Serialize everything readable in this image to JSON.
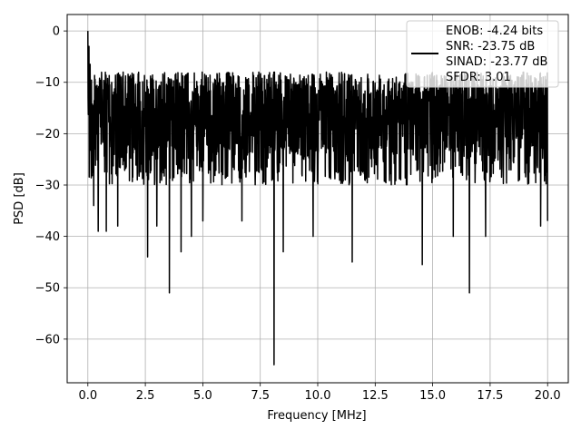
{
  "chart_data": {
    "type": "line",
    "title": "",
    "xlabel": "Frequency [MHz]",
    "ylabel": "PSD [dB]",
    "xlim": [
      -0.9,
      20.9
    ],
    "ylim": [
      -68.5,
      3.2
    ],
    "xticks": [
      0.0,
      2.5,
      5.0,
      7.5,
      10.0,
      12.5,
      15.0,
      17.5,
      20.0
    ],
    "xtick_labels": [
      "0.0",
      "2.5",
      "5.0",
      "7.5",
      "10.0",
      "12.5",
      "15.0",
      "17.5",
      "20.0"
    ],
    "yticks": [
      0,
      -10,
      -20,
      -30,
      -40,
      -50,
      -60
    ],
    "ytick_labels": [
      "0",
      "−10",
      "−20",
      "−30",
      "−40",
      "−50",
      "−60"
    ],
    "grid": true,
    "legend_position": "upper-right",
    "legend": [
      "ENOB: -4.24 bits",
      "SNR: -23.75 dB",
      "SINAD: -23.77 dB",
      "SFDR: 3.01"
    ],
    "series": [
      {
        "color": "#000000",
        "x_range": [
          0.0,
          20.0
        ],
        "sample_count": 2048,
        "noise_floor_db": -18,
        "envelope_top_db": -8,
        "envelope_bottom_db": -30,
        "peaks": [
          {
            "x": 0.0,
            "y": 0.0
          },
          {
            "x": 0.05,
            "y": -3.0
          },
          {
            "x": 0.1,
            "y": -6.5
          }
        ],
        "notable_dips": [
          {
            "x": 0.25,
            "y": -34
          },
          {
            "x": 0.45,
            "y": -39
          },
          {
            "x": 0.8,
            "y": -39
          },
          {
            "x": 1.3,
            "y": -38
          },
          {
            "x": 2.6,
            "y": -44
          },
          {
            "x": 3.0,
            "y": -38
          },
          {
            "x": 3.55,
            "y": -51
          },
          {
            "x": 4.05,
            "y": -43
          },
          {
            "x": 4.5,
            "y": -40
          },
          {
            "x": 5.0,
            "y": -37
          },
          {
            "x": 6.7,
            "y": -37
          },
          {
            "x": 8.1,
            "y": -65
          },
          {
            "x": 8.5,
            "y": -43
          },
          {
            "x": 9.8,
            "y": -40
          },
          {
            "x": 11.5,
            "y": -45
          },
          {
            "x": 14.55,
            "y": -45.5
          },
          {
            "x": 15.9,
            "y": -40
          },
          {
            "x": 16.6,
            "y": -51
          },
          {
            "x": 17.3,
            "y": -40
          },
          {
            "x": 19.7,
            "y": -38
          },
          {
            "x": 20.0,
            "y": -37
          }
        ]
      }
    ]
  }
}
